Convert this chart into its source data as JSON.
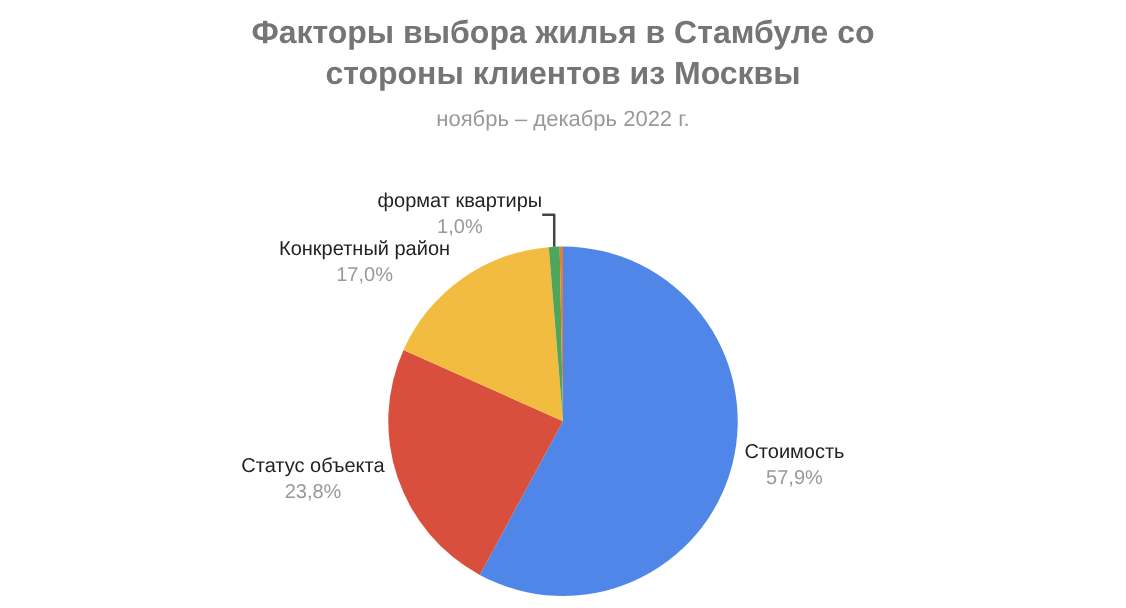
{
  "chart_data": {
    "type": "pie",
    "title": "Факторы выбора жилья в Стамбуле со стороны клиентов из Москвы",
    "subtitle": "ноябрь – декабрь 2022 г.",
    "categories": [
      "Стоимость",
      "Статус объекта",
      "Конкретный район",
      "формат квартиры",
      null
    ],
    "values": [
      57.9,
      23.8,
      17.0,
      1.0,
      0.3
    ],
    "value_labels": [
      "57,9%",
      "23,8%",
      "17,0%",
      "1,0%",
      null
    ],
    "colors": [
      "#5086e8",
      "#d94f3d",
      "#f1bc3f",
      "#4fa55a",
      "#e67c36"
    ],
    "legend": false
  }
}
